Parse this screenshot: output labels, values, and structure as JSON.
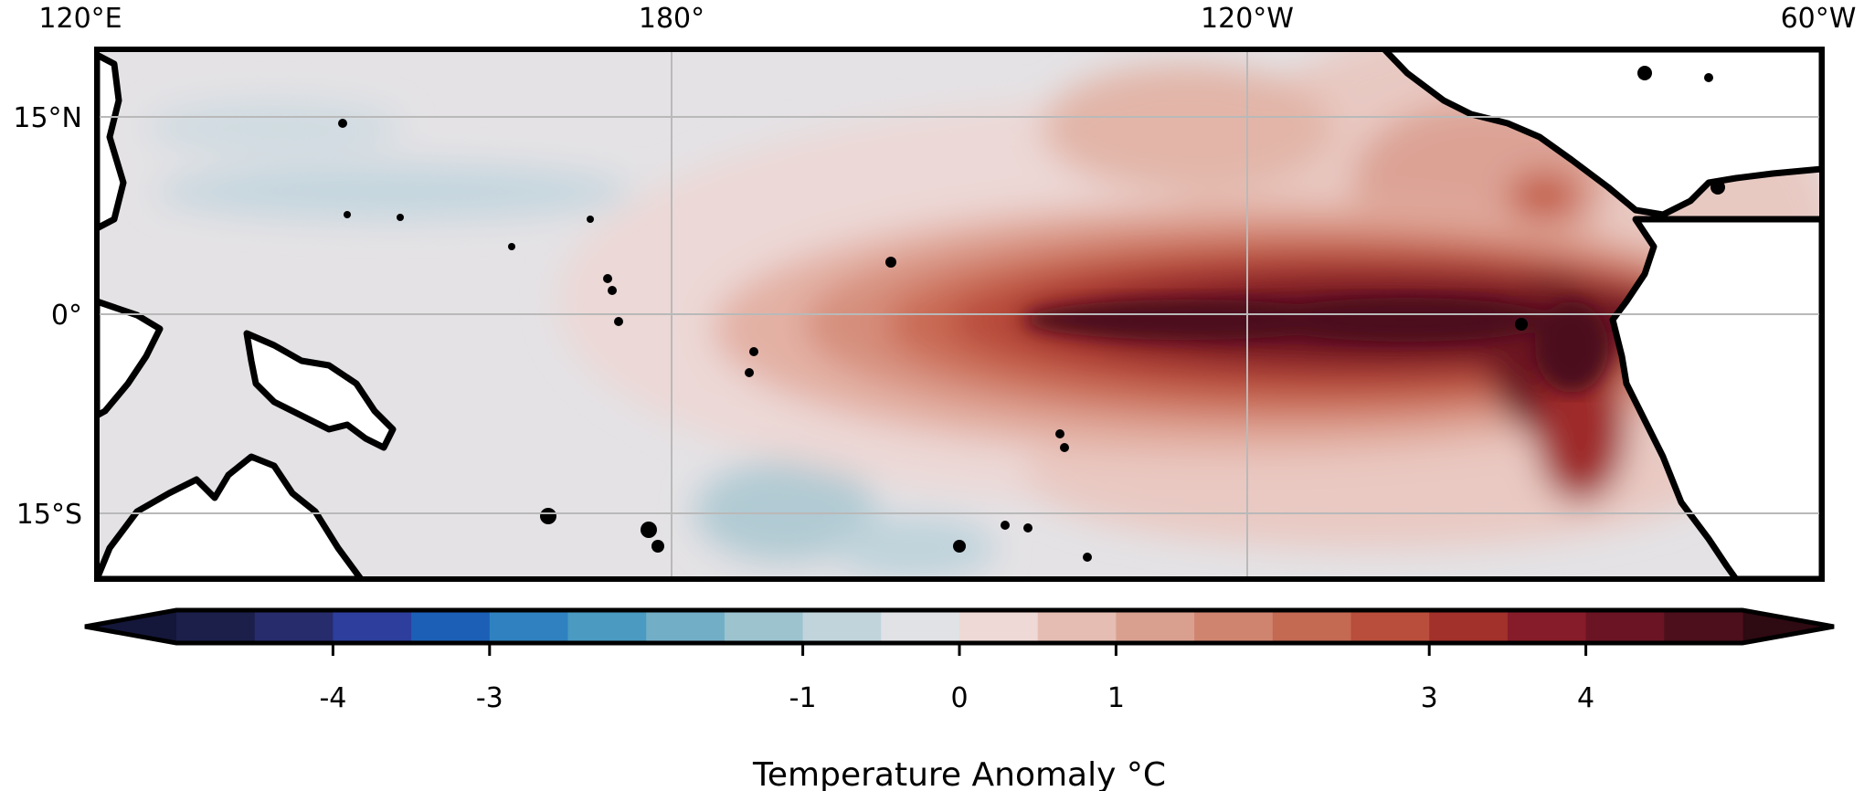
{
  "map": {
    "lon_labels": [
      "120°E",
      "180°",
      "120°W",
      "60°W"
    ],
    "lat_labels": [
      "15°N",
      "0°",
      "15°S"
    ],
    "region": "Tropical Pacific",
    "lon_range": [
      120,
      300
    ],
    "lat_range": [
      -20,
      20
    ],
    "gridlines": true,
    "coastline_color": "#000000"
  },
  "colorbar": {
    "label": "Temperature Anomaly °C",
    "tick_labels": [
      "-4",
      "-3",
      "-1",
      "0",
      "1",
      "3",
      "4"
    ],
    "tick_values": [
      -4,
      -3,
      -1,
      0,
      1,
      3,
      4
    ],
    "range": [
      -5,
      5
    ],
    "extend": "both",
    "colors": [
      "#1b1f4a",
      "#262c6c",
      "#2d3e9d",
      "#1b60b6",
      "#2f82bf",
      "#4a9ac2",
      "#73aec7",
      "#9dc3cf",
      "#c1d4dc",
      "#e0e2e5",
      "#eed9d6",
      "#e5bdb2",
      "#d9a08f",
      "#cf846f",
      "#c46952",
      "#b84e3b",
      "#a2302b",
      "#861c29",
      "#6b1424",
      "#4c0f1b"
    ],
    "under_color": "#14173a",
    "over_color": "#2e0a12"
  },
  "anomaly_field": {
    "description_peak_c": 4.5,
    "warm_tongue": "equatorial eastern Pacific"
  }
}
